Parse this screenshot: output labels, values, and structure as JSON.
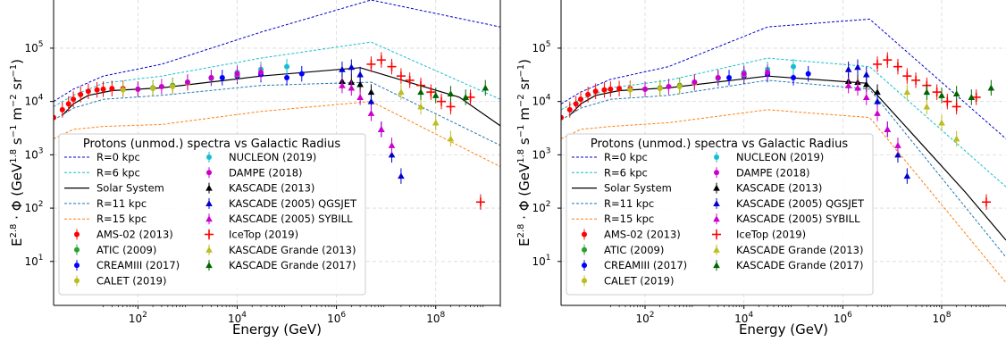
{
  "chart_data": [
    {
      "type": "line",
      "xscale": "log",
      "yscale": "log",
      "xlim": [
        2,
        2000000000
      ],
      "ylim": [
        1.5,
        800000
      ],
      "xticks": [
        {
          "v": 100,
          "b": "10",
          "e": "2"
        },
        {
          "v": 10000,
          "b": "10",
          "e": "4"
        },
        {
          "v": 1000000,
          "b": "10",
          "e": "6"
        },
        {
          "v": 100000000,
          "b": "10",
          "e": "8"
        }
      ],
      "yticks": [
        {
          "v": 10,
          "b": "10",
          "e": "1"
        },
        {
          "v": 100,
          "b": "10",
          "e": "2"
        },
        {
          "v": 1000,
          "b": "10",
          "e": "3"
        },
        {
          "v": 10000,
          "b": "10",
          "e": "4"
        },
        {
          "v": 100000,
          "b": "10",
          "e": "5"
        }
      ],
      "xlabel": "Energy (GeV)",
      "grid": true,
      "legend_title": "Protons (unmod.) spectra vs Galactic Radius",
      "lines": [
        {
          "name": "R=0 kpc",
          "color": "#0000cc",
          "dash": "3,2",
          "x": [
            2,
            5,
            20,
            300,
            30000,
            5000000,
            2000000000
          ],
          "y": [
            10000,
            17000,
            30000,
            50000,
            200000,
            800000,
            250000
          ]
        },
        {
          "name": "R=6 kpc",
          "color": "#17becf",
          "dash": "3,2",
          "x": [
            2,
            5,
            20,
            300,
            30000,
            5000000,
            2000000000
          ],
          "y": [
            8000,
            13000,
            22000,
            30000,
            65000,
            130000,
            11000
          ]
        },
        {
          "name": "Solar System",
          "color": "#000000",
          "dash": "",
          "x": [
            3,
            5,
            10,
            30,
            300,
            30000,
            3000000,
            300000000,
            2000000000
          ],
          "y": [
            5500,
            9000,
            13000,
            16000,
            18000,
            30000,
            43000,
            12000,
            3500
          ]
        },
        {
          "name": "R=11 kpc",
          "color": "#1f77b4",
          "dash": "3,2",
          "x": [
            2,
            5,
            20,
            300,
            30000,
            5000000,
            2000000000
          ],
          "y": [
            4500,
            7500,
            11000,
            13000,
            20000,
            23000,
            1500
          ]
        },
        {
          "name": "R=15 kpc",
          "color": "#ff7f0e",
          "dash": "3,2",
          "x": [
            2,
            5,
            20,
            300,
            30000,
            5000000,
            2000000000
          ],
          "y": [
            2000,
            3000,
            3400,
            3700,
            6500,
            10000,
            600
          ]
        }
      ],
      "datasets": [
        {
          "name": "AMS-02 (2013)",
          "color": "#ff0000",
          "marker": "o",
          "x": [
            2,
            3,
            4,
            5,
            7,
            10,
            15,
            20,
            30,
            50
          ],
          "y": [
            5000,
            7000,
            9000,
            11000,
            13500,
            15500,
            16500,
            17000,
            17500,
            17500
          ]
        },
        {
          "name": "ATIC (2009)",
          "color": "#2ca02c",
          "marker": "o",
          "x": [
            100,
            200,
            500,
            1000,
            3000,
            10000
          ],
          "y": [
            17000,
            18000,
            20000,
            23000,
            28000,
            32000
          ]
        },
        {
          "name": "CREAMIII (2017)",
          "color": "#0000ff",
          "marker": "o",
          "x": [
            5000,
            10000,
            30000,
            100000,
            200000
          ],
          "y": [
            28000,
            30000,
            32000,
            28000,
            33000
          ]
        },
        {
          "name": "CALET (2019)",
          "color": "#bcbd22",
          "marker": "o",
          "x": [
            50,
            100,
            200,
            500,
            1000,
            3000,
            10000
          ],
          "y": [
            16500,
            17000,
            17500,
            19000,
            22000,
            27000,
            32000
          ]
        },
        {
          "name": "NUCLEON (2019)",
          "color": "#17becf",
          "marker": "o",
          "x": [
            3000,
            10000,
            30000,
            100000
          ],
          "y": [
            27000,
            35000,
            40000,
            45000
          ]
        },
        {
          "name": "DAMPE (2018)",
          "color": "#cc00cc",
          "marker": "o",
          "x": [
            100,
            300,
            1000,
            3000,
            10000,
            30000
          ],
          "y": [
            17000,
            19000,
            23000,
            28000,
            33000,
            35000
          ]
        },
        {
          "name": "KASCADE (2013)",
          "color": "#000000",
          "marker": "^",
          "x": [
            1300000,
            2000000,
            3000000,
            5000000
          ],
          "y": [
            24000,
            23000,
            21000,
            15000
          ]
        },
        {
          "name": "KASCADE (2005) QGSJET",
          "color": "#0000cc",
          "marker": "^",
          "x": [
            1300000,
            2000000,
            3000000,
            5000000,
            8000000,
            13000000,
            20000000
          ],
          "y": [
            40000,
            44000,
            32000,
            10000,
            3000,
            1000,
            400
          ]
        },
        {
          "name": "KASCADE (2005) SYBILL",
          "color": "#cc00cc",
          "marker": "^",
          "x": [
            1300000,
            2000000,
            3000000,
            5000000,
            8000000,
            13000000
          ],
          "y": [
            20000,
            18000,
            12000,
            6000,
            3000,
            1500
          ]
        },
        {
          "name": "IceTop (2019)",
          "color": "#ff0000",
          "marker": "+",
          "x": [
            5000000,
            8000000,
            13000000,
            20000000,
            30000000,
            50000000,
            80000000,
            130000000,
            200000000,
            500000000,
            800000000
          ],
          "y": [
            50000,
            60000,
            45000,
            30000,
            25000,
            20000,
            15000,
            10000,
            8000,
            12000,
            130
          ]
        },
        {
          "name": "KASCADE Grande (2013)",
          "color": "#bcbd22",
          "marker": "^",
          "x": [
            20000000,
            50000000,
            100000000,
            200000000
          ],
          "y": [
            15000,
            8000,
            4000,
            2000
          ]
        },
        {
          "name": "KASCADE Grande (2017)",
          "color": "#006400",
          "marker": "^",
          "x": [
            50000000,
            100000000,
            200000000,
            400000000,
            1000000000
          ],
          "y": [
            15000,
            13000,
            14000,
            12000,
            18000
          ]
        }
      ]
    },
    {
      "type": "line",
      "xscale": "log",
      "yscale": "log",
      "xlim": [
        2,
        2000000000
      ],
      "ylim": [
        1.5,
        800000
      ],
      "xticks": [
        {
          "v": 100,
          "b": "10",
          "e": "2"
        },
        {
          "v": 10000,
          "b": "10",
          "e": "4"
        },
        {
          "v": 1000000,
          "b": "10",
          "e": "6"
        },
        {
          "v": 100000000,
          "b": "10",
          "e": "8"
        }
      ],
      "yticks": [
        {
          "v": 10,
          "b": "10",
          "e": "1"
        },
        {
          "v": 100,
          "b": "10",
          "e": "2"
        },
        {
          "v": 1000,
          "b": "10",
          "e": "3"
        },
        {
          "v": 10000,
          "b": "10",
          "e": "4"
        },
        {
          "v": 100000,
          "b": "10",
          "e": "5"
        }
      ],
      "xlabel": "Energy (GeV)",
      "grid": true,
      "legend_title": "Protons (unmod.) spectra vs Galactic Radius",
      "lines": [
        {
          "name": "R=0 kpc",
          "color": "#0000cc",
          "dash": "3,2",
          "x": [
            2,
            5,
            20,
            300,
            30000,
            3500000,
            2000000000
          ],
          "y": [
            9000,
            15000,
            26000,
            45000,
            250000,
            350000,
            2000
          ]
        },
        {
          "name": "R=6 kpc",
          "color": "#17becf",
          "dash": "3,2",
          "x": [
            2,
            5,
            20,
            300,
            30000,
            3500000,
            2000000000
          ],
          "y": [
            7000,
            11000,
            18000,
            25000,
            65000,
            45000,
            250
          ]
        },
        {
          "name": "Solar System",
          "color": "#000000",
          "dash": "",
          "x": [
            3,
            5,
            10,
            30,
            300,
            30000,
            3000000,
            300000000,
            2000000000
          ],
          "y": [
            5500,
            9000,
            13000,
            16000,
            18000,
            30000,
            22000,
            200,
            25
          ]
        },
        {
          "name": "R=11 kpc",
          "color": "#1f77b4",
          "dash": "3,2",
          "x": [
            2,
            5,
            20,
            300,
            30000,
            3500000,
            2000000000
          ],
          "y": [
            4500,
            7500,
            11000,
            13000,
            25000,
            17000,
            12
          ]
        },
        {
          "name": "R=15 kpc",
          "color": "#ff7f0e",
          "dash": "3,2",
          "x": [
            2,
            5,
            20,
            300,
            30000,
            3500000,
            2000000000
          ],
          "y": [
            2000,
            3000,
            3400,
            4000,
            7000,
            5000,
            4
          ]
        }
      ],
      "datasets": [
        {
          "name": "AMS-02 (2013)",
          "color": "#ff0000",
          "marker": "o",
          "x": [
            2,
            3,
            4,
            5,
            7,
            10,
            15,
            20,
            30,
            50
          ],
          "y": [
            5000,
            7000,
            9000,
            11000,
            13500,
            15500,
            16500,
            17000,
            17500,
            17500
          ]
        },
        {
          "name": "ATIC (2009)",
          "color": "#2ca02c",
          "marker": "o",
          "x": [
            100,
            200,
            500,
            1000,
            3000,
            10000
          ],
          "y": [
            17000,
            18000,
            20000,
            23000,
            28000,
            32000
          ]
        },
        {
          "name": "CREAMIII (2017)",
          "color": "#0000ff",
          "marker": "o",
          "x": [
            5000,
            10000,
            30000,
            100000,
            200000
          ],
          "y": [
            28000,
            30000,
            32000,
            28000,
            33000
          ]
        },
        {
          "name": "CALET (2019)",
          "color": "#bcbd22",
          "marker": "o",
          "x": [
            50,
            100,
            200,
            500,
            1000,
            3000,
            10000
          ],
          "y": [
            16500,
            17000,
            17500,
            19000,
            22000,
            27000,
            32000
          ]
        },
        {
          "name": "NUCLEON (2019)",
          "color": "#17becf",
          "marker": "o",
          "x": [
            3000,
            10000,
            30000,
            100000
          ],
          "y": [
            27000,
            35000,
            40000,
            45000
          ]
        },
        {
          "name": "DAMPE (2018)",
          "color": "#cc00cc",
          "marker": "o",
          "x": [
            100,
            300,
            1000,
            3000,
            10000,
            30000
          ],
          "y": [
            17000,
            19000,
            23000,
            28000,
            33000,
            35000
          ]
        },
        {
          "name": "KASCADE (2013)",
          "color": "#000000",
          "marker": "^",
          "x": [
            1300000,
            2000000,
            3000000,
            5000000
          ],
          "y": [
            24000,
            23000,
            21000,
            15000
          ]
        },
        {
          "name": "KASCADE (2005) QGSJET",
          "color": "#0000cc",
          "marker": "^",
          "x": [
            1300000,
            2000000,
            3000000,
            5000000,
            8000000,
            13000000,
            20000000
          ],
          "y": [
            40000,
            44000,
            32000,
            10000,
            3000,
            1000,
            400
          ]
        },
        {
          "name": "KASCADE (2005) SYBILL",
          "color": "#cc00cc",
          "marker": "^",
          "x": [
            1300000,
            2000000,
            3000000,
            5000000,
            8000000,
            13000000
          ],
          "y": [
            20000,
            18000,
            12000,
            6000,
            3000,
            1500
          ]
        },
        {
          "name": "IceTop (2019)",
          "color": "#ff0000",
          "marker": "+",
          "x": [
            5000000,
            8000000,
            13000000,
            20000000,
            30000000,
            50000000,
            80000000,
            130000000,
            200000000,
            500000000,
            800000000
          ],
          "y": [
            50000,
            60000,
            45000,
            30000,
            25000,
            20000,
            15000,
            10000,
            8000,
            12000,
            130
          ]
        },
        {
          "name": "KASCADE Grande (2013)",
          "color": "#bcbd22",
          "marker": "^",
          "x": [
            20000000,
            50000000,
            100000000,
            200000000
          ],
          "y": [
            15000,
            8000,
            4000,
            2000
          ]
        },
        {
          "name": "KASCADE Grande (2017)",
          "color": "#006400",
          "marker": "^",
          "x": [
            50000000,
            100000000,
            200000000,
            400000000,
            1000000000
          ],
          "y": [
            15000,
            13000,
            14000,
            12000,
            18000
          ]
        }
      ]
    }
  ]
}
